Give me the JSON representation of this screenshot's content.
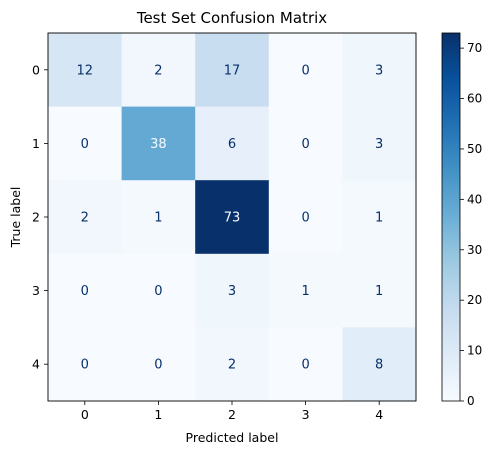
{
  "chart_data": {
    "type": "heatmap",
    "title": "Test Set Confusion Matrix",
    "xlabel": "Predicted label",
    "ylabel": "True label",
    "x_categories": [
      "0",
      "1",
      "2",
      "3",
      "4"
    ],
    "y_categories": [
      "0",
      "1",
      "2",
      "3",
      "4"
    ],
    "matrix": [
      [
        12,
        2,
        17,
        0,
        3
      ],
      [
        0,
        38,
        6,
        0,
        3
      ],
      [
        2,
        1,
        73,
        0,
        1
      ],
      [
        0,
        0,
        3,
        1,
        1
      ],
      [
        0,
        0,
        2,
        0,
        8
      ]
    ],
    "colormap": "Blues",
    "color_range": [
      0,
      73
    ],
    "colorbar_ticks": [
      "0",
      "10",
      "20",
      "30",
      "40",
      "50",
      "60",
      "70"
    ],
    "grid": false
  }
}
